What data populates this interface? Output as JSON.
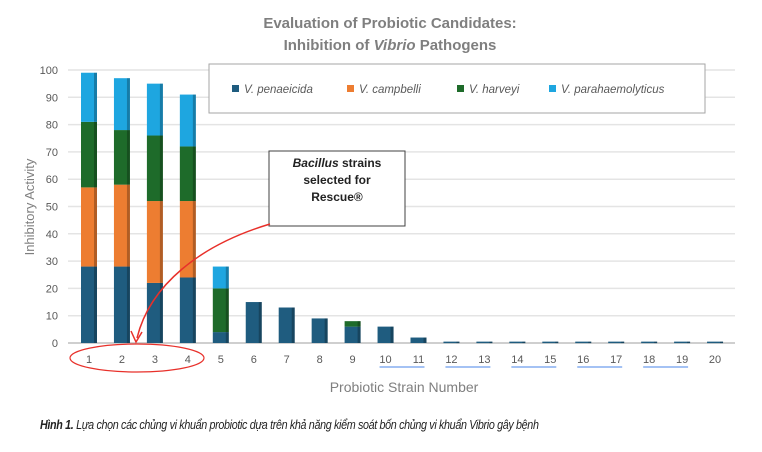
{
  "chart_data": {
    "type": "bar",
    "stacked": true,
    "title_line1": "Evaluation of Probiotic Candidates:",
    "title_line2_pre": "Inhibition of ",
    "title_line2_italic": "Vibrio",
    "title_line2_post": " Pathogens",
    "xlabel": "Probiotic Strain Number",
    "ylabel": "Inhibitory Activity",
    "ylim": [
      0,
      100
    ],
    "yticks": [
      "0",
      "10",
      "20",
      "30",
      "40",
      "50",
      "60",
      "70",
      "80",
      "90",
      "100"
    ],
    "categories": [
      "1",
      "2",
      "3",
      "4",
      "5",
      "6",
      "7",
      "8",
      "9",
      "10",
      "11",
      "12",
      "13",
      "14",
      "15",
      "16",
      "17",
      "18",
      "19",
      "20"
    ],
    "grid": true,
    "legend_position": "top",
    "series": [
      {
        "name": "V. penaeicida",
        "color": "#1f5c7f",
        "values": [
          28,
          28,
          22,
          24,
          4,
          15,
          13,
          9,
          6,
          6,
          2,
          0.5,
          0.5,
          0.5,
          0.5,
          0.5,
          0.5,
          0.5,
          0.5,
          0.5
        ]
      },
      {
        "name": "V. campbelli",
        "color": "#ed7d31",
        "values": [
          29,
          30,
          30,
          28,
          0,
          0,
          0,
          0,
          0,
          0,
          0,
          0,
          0,
          0,
          0,
          0,
          0,
          0,
          0,
          0
        ]
      },
      {
        "name": "V. harveyi",
        "color": "#1e6b2a",
        "values": [
          24,
          20,
          24,
          20,
          16,
          0,
          0,
          0,
          2,
          0,
          0,
          0,
          0,
          0,
          0,
          0,
          0,
          0,
          0,
          0
        ]
      },
      {
        "name": "V. parahaemolyticus",
        "color": "#1ea6e0",
        "values": [
          18,
          19,
          19,
          19,
          8,
          0,
          0,
          0,
          0,
          0,
          0,
          0,
          0,
          0,
          0,
          0,
          0,
          0,
          0,
          0
        ]
      }
    ],
    "annotation": {
      "italic": "Bacillus",
      "text1": " strains",
      "text2": "selected for",
      "text3": "Rescue®",
      "highlighted_categories": [
        "1",
        "2",
        "3",
        "4"
      ],
      "highlight_color": "#e8302a"
    }
  },
  "caption": {
    "label": "Hình 1.",
    "text": " Lựa chọn các chủng vi khuẩn probiotic dựa trên khả năng kiểm soát bốn chủng vi khuẩn Vibrio gây bệnh"
  }
}
